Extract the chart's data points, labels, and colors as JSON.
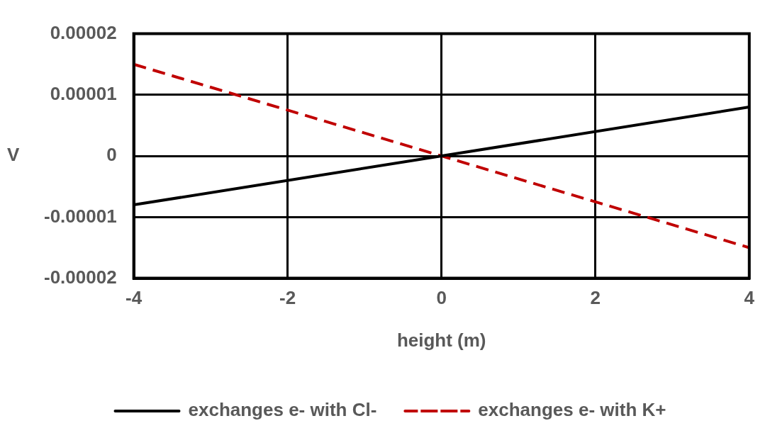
{
  "chart_data": {
    "type": "line",
    "xlabel": "height (m)",
    "ylabel": "V",
    "xlim": [
      -4,
      4
    ],
    "xticks": [
      -4,
      -2,
      0,
      2,
      4
    ],
    "ylim": [
      -2e-05,
      2e-05
    ],
    "yticks": [
      {
        "value": -2e-05,
        "label": "-0.00002"
      },
      {
        "value": -1e-05,
        "label": "-0.00001"
      },
      0,
      {
        "value": 1e-05,
        "label": "0.00001"
      },
      {
        "value": 2e-05,
        "label": "0.00002"
      }
    ],
    "grid": true,
    "legend": "bottom",
    "marker": "none",
    "x": [
      -4,
      4
    ],
    "series": [
      {
        "name": "exchanges e- with Cl-",
        "color": "#000000",
        "line_style": "solid",
        "values": [
          -8e-06,
          8e-06
        ]
      },
      {
        "name": "exchanges e- with K+",
        "color": "#c00000",
        "line_style": "dashed",
        "values": [
          1.5e-05,
          -1.5e-05
        ]
      }
    ]
  }
}
